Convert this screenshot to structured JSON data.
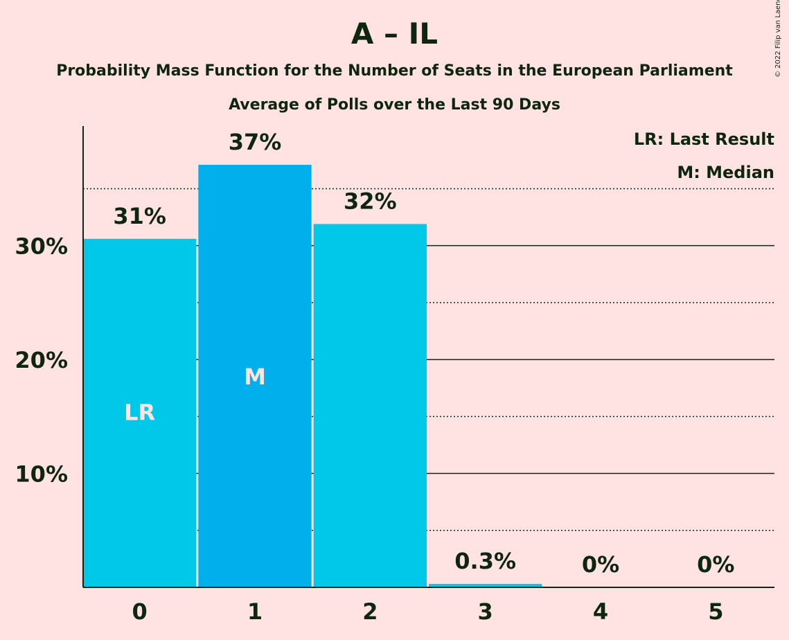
{
  "header": {
    "title": "A – IL",
    "subtitle": "Probability Mass Function for the Number of Seats in the European Parliament",
    "subtitle2": "Average of Polls over the Last 90 Days",
    "copyright": "© 2022 Filip van Laenen"
  },
  "legend": {
    "lr": "LR: Last Result",
    "median": "M: Median"
  },
  "colors": {
    "background": "#FFE3E3",
    "bar": "#00C8E8",
    "median_bar": "#00B0ED",
    "text": "#0D260D"
  },
  "chart_data": {
    "type": "bar",
    "categories": [
      "0",
      "1",
      "2",
      "3",
      "4",
      "5"
    ],
    "values": [
      30.6,
      37.1,
      31.9,
      0.3,
      0,
      0
    ],
    "value_labels": [
      "31%",
      "37%",
      "32%",
      "0.3%",
      "0%",
      "0%"
    ],
    "bar_marks": [
      "LR",
      "M",
      "",
      "",
      "",
      ""
    ],
    "median_index": 1,
    "y_ticks": [
      10,
      20,
      30
    ],
    "y_tick_labels": [
      "10%",
      "20%",
      "30%"
    ],
    "minor_gridlines": [
      5,
      15,
      25,
      35
    ],
    "ylim": [
      0,
      40.5
    ],
    "grid": true,
    "legend_position": "top-right"
  }
}
